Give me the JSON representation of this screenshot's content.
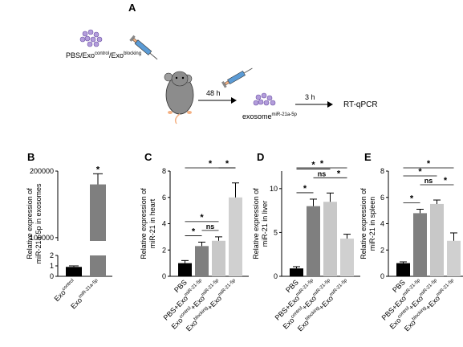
{
  "panel_a": {
    "letter": "A",
    "groups_label": "PBS/Exo",
    "groups_sup1": "control",
    "groups_mid": "/Exo",
    "groups_sup2": "blocking",
    "time1": "48 h",
    "exosome_label": "exosome",
    "exosome_sup": "miR-21a-5p",
    "time2": "3 h",
    "readout": "RT-qPCR"
  },
  "colors": {
    "black": "#000000",
    "dark_gray": "#7f7f7f",
    "light_gray": "#d0d0d0",
    "lighter_gray": "#c8c8c8",
    "exosome_purple": "#b39ddb"
  },
  "chart_data": [
    {
      "panel": "B",
      "type": "bar",
      "ylabel_line1": "Relative expression of",
      "ylabel_line2": "miR-21a-5p in exosomes",
      "categories": [
        {
          "base": "Exo",
          "sup": "control"
        },
        {
          "base": "Exo",
          "sup": "miR-21a-5p"
        }
      ],
      "values": [
        0.9,
        180000
      ],
      "errors": [
        0.1,
        16000
      ],
      "colors": [
        "#000000",
        "#7f7f7f"
      ],
      "y_break": {
        "lower": [
          0,
          2
        ],
        "upper": [
          95000,
          200000
        ]
      },
      "ticks_lower": [
        "0",
        "1",
        "2"
      ],
      "ticks_upper": [
        "100000",
        "200000"
      ],
      "significance": [
        {
          "from": 1,
          "to": 1,
          "label": "*"
        }
      ]
    },
    {
      "panel": "C",
      "type": "bar",
      "ylabel_line1": "Relative expression of",
      "ylabel_line2": "miR-21 in heart",
      "categories": [
        {
          "base": "PBS",
          "sup": ""
        },
        {
          "base": "PBS+Exo",
          "sup": "miR-21-5p"
        },
        {
          "base": "Exo",
          "sup": "control",
          "tail": "+Exo",
          "sup2": "miR-21-5p"
        },
        {
          "base": "Exo",
          "sup": "blocking",
          "tail": "+Exo",
          "sup2": "miR-21-5p"
        }
      ],
      "values": [
        1.0,
        2.3,
        2.7,
        6.0
      ],
      "errors": [
        0.2,
        0.3,
        0.3,
        1.1
      ],
      "colors": [
        "#000000",
        "#7f7f7f",
        "#c8c8c8",
        "#d0d0d0"
      ],
      "ylim": [
        0,
        8
      ],
      "yticks": [
        "0",
        "2",
        "4",
        "6",
        "8"
      ],
      "significance": [
        {
          "from": 0,
          "to": 1,
          "label": "*",
          "level": 0
        },
        {
          "from": 1,
          "to": 2,
          "label": "ns",
          "level": 0
        },
        {
          "from": 0,
          "to": 2,
          "label": "*",
          "level": 1
        },
        {
          "from": 2,
          "to": 3,
          "label": "*",
          "level": 2
        },
        {
          "from": 0,
          "to": 3,
          "label": "*",
          "level": 3
        }
      ]
    },
    {
      "panel": "D",
      "type": "bar",
      "ylabel_line1": "Relative expression of",
      "ylabel_line2": "miR-21 in liver",
      "categories": [
        {
          "base": "PBS",
          "sup": ""
        },
        {
          "base": "PBS+Exo",
          "sup": "miR-21-5p"
        },
        {
          "base": "Exo",
          "sup": "control",
          "tail": "+Exo",
          "sup2": "miR-21-5p"
        },
        {
          "base": "Exo",
          "sup": "blocking",
          "tail": "+Exo",
          "sup2": "miR-21-5p"
        }
      ],
      "values": [
        0.9,
        8.0,
        8.5,
        4.3
      ],
      "errors": [
        0.2,
        0.8,
        1.0,
        0.5
      ],
      "colors": [
        "#000000",
        "#7f7f7f",
        "#c8c8c8",
        "#d0d0d0"
      ],
      "ylim": [
        0,
        12
      ],
      "yticks": [
        "0",
        "5",
        "10"
      ],
      "significance": [
        {
          "from": 0,
          "to": 1,
          "label": "*",
          "level": 0
        },
        {
          "from": 1,
          "to": 2,
          "label": "ns",
          "level": 1
        },
        {
          "from": 2,
          "to": 3,
          "label": "*",
          "level": 1
        },
        {
          "from": 0,
          "to": 2,
          "label": "*",
          "level": 2
        },
        {
          "from": 0,
          "to": 3,
          "label": "*",
          "level": 3
        }
      ]
    },
    {
      "panel": "E",
      "type": "bar",
      "ylabel_line1": "Relative expression of",
      "ylabel_line2": "miR-21 in spleen",
      "categories": [
        {
          "base": "PBS",
          "sup": ""
        },
        {
          "base": "PBS+Exo",
          "sup": "miR-21-5p"
        },
        {
          "base": "Exo",
          "sup": "control",
          "tail": "+Exo",
          "sup2": "miR-21-5p"
        },
        {
          "base": "Exo",
          "sup": "blocking",
          "tail": "+Exo",
          "sup2": "miR-21-5p"
        }
      ],
      "values": [
        1.0,
        4.8,
        5.5,
        2.7
      ],
      "errors": [
        0.1,
        0.3,
        0.3,
        0.6
      ],
      "colors": [
        "#000000",
        "#7f7f7f",
        "#c8c8c8",
        "#d0d0d0"
      ],
      "ylim": [
        0,
        8
      ],
      "yticks": [
        "0",
        "2",
        "4",
        "6",
        "8"
      ],
      "significance": [
        {
          "from": 0,
          "to": 1,
          "label": "*",
          "level": 0
        },
        {
          "from": 1,
          "to": 2,
          "label": "ns",
          "level": 1
        },
        {
          "from": 2,
          "to": 3,
          "label": "*",
          "level": 1
        },
        {
          "from": 0,
          "to": 2,
          "label": "*",
          "level": 2
        },
        {
          "from": 0,
          "to": 3,
          "label": "*",
          "level": 3
        }
      ]
    }
  ]
}
